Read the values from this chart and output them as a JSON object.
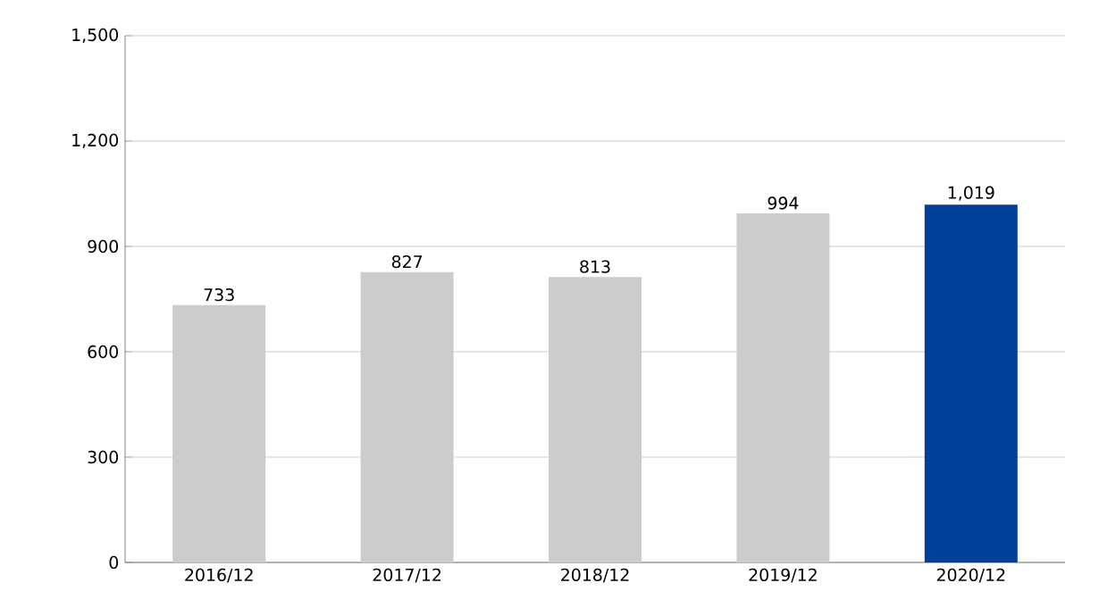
{
  "chart_data": {
    "type": "bar",
    "categories": [
      "2016/12",
      "2017/12",
      "2018/12",
      "2019/12",
      "2020/12"
    ],
    "values": [
      733,
      827,
      813,
      994,
      1019
    ],
    "colors": [
      "#cccccc",
      "#cccccc",
      "#cccccc",
      "#cccccc",
      "#003f98"
    ],
    "value_labels": [
      "733",
      "827",
      "813",
      "994",
      "1,019"
    ],
    "ylim": [
      0,
      1500
    ],
    "yticks": [
      0,
      300,
      600,
      900,
      {
        "value": 1200,
        "label": "1,200"
      },
      {
        "value": 1500,
        "label": "1,500"
      }
    ],
    "grid": "y"
  }
}
